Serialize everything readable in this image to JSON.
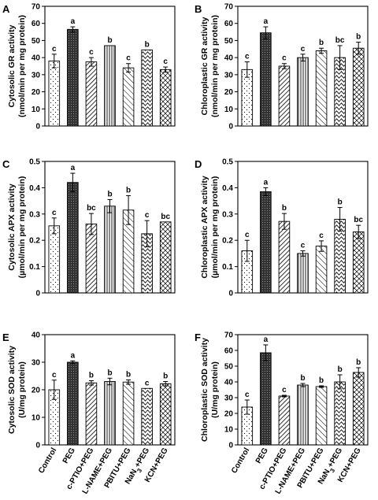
{
  "chart_data": [
    {
      "panel": "A",
      "type": "bar",
      "ylabel": "Cytosolic GR activity",
      "ylabel2": "(nmol/min per mg protein)",
      "ylim": [
        0,
        70
      ],
      "yticks": [
        0,
        10,
        20,
        30,
        40,
        50,
        60,
        70
      ],
      "categories": [
        "Control",
        "PEG",
        "c-PTIO+PEG",
        "L-NAME+PEG",
        "PBITU+PEG",
        "NaN3+PEG",
        "KCN+PEG"
      ],
      "values": [
        38,
        56.5,
        37.5,
        47,
        34,
        44.5,
        33
      ],
      "errors": [
        4,
        1.5,
        2.5,
        0,
        2.5,
        0,
        1.5
      ],
      "letters": [
        "c",
        "a",
        "c",
        "b",
        "c",
        "b",
        "c"
      ]
    },
    {
      "panel": "B",
      "type": "bar",
      "ylabel": "Chloroplastic GR activity",
      "ylabel2": "(nmol/min per mg protein)",
      "ylim": [
        0,
        70
      ],
      "yticks": [
        0,
        10,
        20,
        30,
        40,
        50,
        60,
        70
      ],
      "categories": [
        "Control",
        "PEG",
        "c-PTIO+PEG",
        "L-NAME+PEG",
        "PBITU+PEG",
        "NaN3+PEG",
        "KCN+PEG"
      ],
      "values": [
        33,
        54.5,
        35,
        40,
        44,
        40,
        45.5
      ],
      "errors": [
        4.5,
        3.5,
        1.5,
        2,
        1.5,
        7,
        3.5
      ],
      "letters": [
        "c",
        "a",
        "c",
        "c",
        "b",
        "bc",
        "b"
      ]
    },
    {
      "panel": "C",
      "type": "bar",
      "ylabel": "Cytosolic APX activity",
      "ylabel2": "(µmol/min per mg protein)",
      "ylim": [
        0,
        0.5
      ],
      "yticks": [
        0,
        0.1,
        0.2,
        0.3,
        0.4,
        0.5
      ],
      "categories": [
        "Control",
        "PEG",
        "c-PTIO+PEG",
        "L-NAME+PEG",
        "PBITU+PEG",
        "NaN3+PEG",
        "KCN+PEG"
      ],
      "values": [
        0.255,
        0.42,
        0.262,
        0.33,
        0.315,
        0.225,
        0.27
      ],
      "errors": [
        0.03,
        0.035,
        0.04,
        0.025,
        0.055,
        0.05,
        0
      ],
      "letters": [
        "c",
        "a",
        "bc",
        "b",
        "b",
        "c",
        "bc"
      ]
    },
    {
      "panel": "D",
      "type": "bar",
      "ylabel": "Chloroplastic APX activity",
      "ylabel2": "(µmol/min per mg protein)",
      "ylim": [
        0,
        0.5
      ],
      "yticks": [
        0,
        0.1,
        0.2,
        0.3,
        0.4,
        0.5
      ],
      "categories": [
        "Control",
        "PEG",
        "c-PTIO+PEG",
        "L-NAME+PEG",
        "PBITU+PEG",
        "NaN3+PEG",
        "KCN+PEG"
      ],
      "values": [
        0.16,
        0.385,
        0.272,
        0.15,
        0.178,
        0.28,
        0.232
      ],
      "errors": [
        0.04,
        0.015,
        0.03,
        0.01,
        0.02,
        0.045,
        0.025
      ],
      "letters": [
        "c",
        "a",
        "b",
        "c",
        "c",
        "b",
        "bc"
      ]
    },
    {
      "panel": "E",
      "type": "bar",
      "ylabel": "Cytosolic SOD activity",
      "ylabel2": "(U/mg protein)",
      "ylim": [
        0,
        40
      ],
      "yticks": [
        0,
        10,
        20,
        30,
        40
      ],
      "categories": [
        "Control",
        "PEG",
        "c-PTIO+PEG",
        "L-NAME+PEG",
        "PBITU+PEG",
        "NaN3+PEG",
        "KCN+PEG"
      ],
      "values": [
        20,
        30,
        22.5,
        23,
        22.8,
        20.5,
        22.2
      ],
      "errors": [
        3.5,
        0.5,
        0.8,
        1.2,
        0.8,
        0,
        0.8
      ],
      "letters": [
        "c",
        "a",
        "b",
        "b",
        "b",
        "c",
        "b"
      ]
    },
    {
      "panel": "F",
      "type": "bar",
      "ylabel": "Chloroplastic SOD activity",
      "ylabel2": "(U/mg protein)",
      "ylim": [
        0,
        70
      ],
      "yticks": [
        0,
        10,
        20,
        30,
        40,
        50,
        60,
        70
      ],
      "categories": [
        "Control",
        "PEG",
        "c-PTIO+PEG",
        "L-NAME+PEG",
        "PBITU+PEG",
        "NaN3+PEG",
        "KCN+PEG"
      ],
      "values": [
        24,
        58.5,
        31,
        38,
        37,
        40,
        46
      ],
      "errors": [
        4.5,
        5,
        0.5,
        1,
        0.5,
        4.5,
        3
      ],
      "letters": [
        "c",
        "a",
        "c",
        "b",
        "b",
        "b",
        "b"
      ]
    }
  ]
}
